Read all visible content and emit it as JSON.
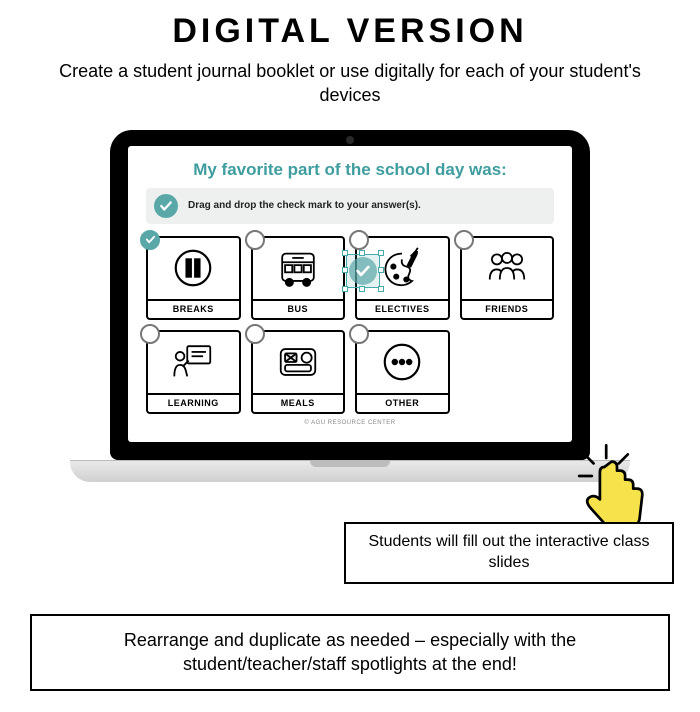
{
  "heading": "DIGITAL VERSION",
  "subheading": "Create a student journal booklet or use digitally for each of your student's devices",
  "slide": {
    "title": "My favorite part of the school day was:",
    "instruction": "Drag and drop the check mark to your answer(s).",
    "copyright": "© AGU RESOURCE CENTER",
    "title_color": "#3f9da0",
    "accent_color": "#5aa7a8",
    "cards": [
      {
        "label": "BREAKS",
        "icon": "pause",
        "checked": true
      },
      {
        "label": "BUS",
        "icon": "bus",
        "checked": false
      },
      {
        "label": "ELECTIVES",
        "icon": "palette",
        "checked": false
      },
      {
        "label": "FRIENDS",
        "icon": "friends",
        "checked": false
      },
      {
        "label": "LEARNING",
        "icon": "teacher",
        "checked": false
      },
      {
        "label": "MEALS",
        "icon": "tray",
        "checked": false
      },
      {
        "label": "OTHER",
        "icon": "dots",
        "checked": false
      }
    ]
  },
  "callout1": "Students will fill out the interactive class slides",
  "callout2": "Rearrange and duplicate as needed – especially with the student/teacher/staff spotlights at the end!",
  "colors": {
    "background": "#ffffff",
    "text": "#000000",
    "laptop": "#000000",
    "base": "#d0d0d0",
    "cursor_accent": "#f6e34b"
  }
}
